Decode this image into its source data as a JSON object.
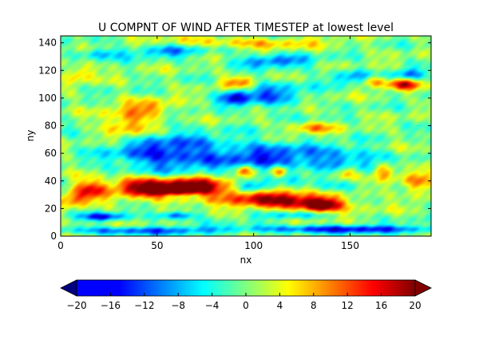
{
  "chart_data": {
    "type": "heatmap",
    "title": "U COMPNT OF WIND AFTER TIMESTEP at lowest level",
    "xlabel": "nx",
    "ylabel": "ny",
    "xlim": [
      0,
      192
    ],
    "ylim": [
      0,
      145
    ],
    "x_ticks": [
      0,
      50,
      100,
      150
    ],
    "y_ticks": [
      0,
      20,
      40,
      60,
      80,
      100,
      120,
      140
    ],
    "colormap": "jet",
    "colorbar": {
      "orientation": "horizontal",
      "extend": "both",
      "range": [
        -20,
        20
      ],
      "ticks": [
        -20,
        -16,
        -12,
        -8,
        -4,
        0,
        4,
        8,
        12,
        16,
        20
      ]
    },
    "grid": false,
    "legend": "none",
    "features": [
      {
        "x": 55,
        "y": 33,
        "value": 20,
        "sx": 16,
        "sy": 5
      },
      {
        "x": 70,
        "y": 36,
        "value": 13,
        "sx": 14,
        "sy": 6
      },
      {
        "x": 38,
        "y": 38,
        "value": 11,
        "sx": 9,
        "sy": 4
      },
      {
        "x": 15,
        "y": 34,
        "value": 14,
        "sx": 6,
        "sy": 5
      },
      {
        "x": 6,
        "y": 27,
        "value": 10,
        "sx": 6,
        "sy": 4
      },
      {
        "x": 125,
        "y": 25,
        "value": 15,
        "sx": 18,
        "sy": 5
      },
      {
        "x": 135,
        "y": 22,
        "value": 18,
        "sx": 6,
        "sy": 3
      },
      {
        "x": 100,
        "y": 28,
        "value": 11,
        "sx": 14,
        "sy": 4
      },
      {
        "x": 148,
        "y": 46,
        "value": 12,
        "sx": 4,
        "sy": 4
      },
      {
        "x": 168,
        "y": 48,
        "value": 12,
        "sx": 4,
        "sy": 4
      },
      {
        "x": 185,
        "y": 38,
        "value": 10,
        "sx": 6,
        "sy": 6
      },
      {
        "x": 95,
        "y": 47,
        "value": 13,
        "sx": 3,
        "sy": 3
      },
      {
        "x": 113,
        "y": 47,
        "value": 13,
        "sx": 3,
        "sy": 3
      },
      {
        "x": 35,
        "y": 82,
        "value": 11,
        "sx": 9,
        "sy": 8
      },
      {
        "x": 130,
        "y": 78,
        "value": 9,
        "sx": 8,
        "sy": 3
      },
      {
        "x": 93,
        "y": 111,
        "value": 12,
        "sx": 7,
        "sy": 3
      },
      {
        "x": 162,
        "y": 112,
        "value": 11,
        "sx": 4,
        "sy": 3
      },
      {
        "x": 178,
        "y": 110,
        "value": 15,
        "sx": 6,
        "sy": 3
      },
      {
        "x": 10,
        "y": 118,
        "value": 9,
        "sx": 5,
        "sy": 4
      },
      {
        "x": 48,
        "y": 93,
        "value": 8,
        "sx": 8,
        "sy": 4
      },
      {
        "x": 55,
        "y": 60,
        "value": -14,
        "sx": 20,
        "sy": 10
      },
      {
        "x": 108,
        "y": 57,
        "value": -12,
        "sx": 20,
        "sy": 8
      },
      {
        "x": 150,
        "y": 55,
        "value": -9,
        "sx": 14,
        "sy": 6
      },
      {
        "x": 108,
        "y": 103,
        "value": -10,
        "sx": 12,
        "sy": 7
      },
      {
        "x": 90,
        "y": 100,
        "value": -13,
        "sx": 5,
        "sy": 4
      },
      {
        "x": 55,
        "y": 134,
        "value": -9,
        "sx": 14,
        "sy": 3
      },
      {
        "x": 20,
        "y": 132,
        "value": -8,
        "sx": 8,
        "sy": 3
      },
      {
        "x": 110,
        "y": 127,
        "value": -11,
        "sx": 14,
        "sy": 3
      },
      {
        "x": 150,
        "y": 115,
        "value": -8,
        "sx": 8,
        "sy": 4
      },
      {
        "x": 180,
        "y": 117,
        "value": -10,
        "sx": 6,
        "sy": 3
      },
      {
        "x": 62,
        "y": 29,
        "value": -12,
        "sx": 12,
        "sy": 2
      },
      {
        "x": 22,
        "y": 14,
        "value": -14,
        "sx": 8,
        "sy": 2
      },
      {
        "x": 60,
        "y": 15,
        "value": -13,
        "sx": 7,
        "sy": 2
      },
      {
        "x": 150,
        "y": 5,
        "value": -14,
        "sx": 40,
        "sy": 2
      },
      {
        "x": 40,
        "y": 4,
        "value": -11,
        "sx": 30,
        "sy": 2
      },
      {
        "x": 100,
        "y": 36,
        "value": -11,
        "sx": 6,
        "sy": 3
      },
      {
        "x": 140,
        "y": 35,
        "value": -8,
        "sx": 8,
        "sy": 3
      },
      {
        "x": 120,
        "y": 15,
        "value": -8,
        "sx": 12,
        "sy": 2
      },
      {
        "x": 96,
        "y": 140,
        "value": 7,
        "sx": 30,
        "sy": 3
      }
    ]
  }
}
